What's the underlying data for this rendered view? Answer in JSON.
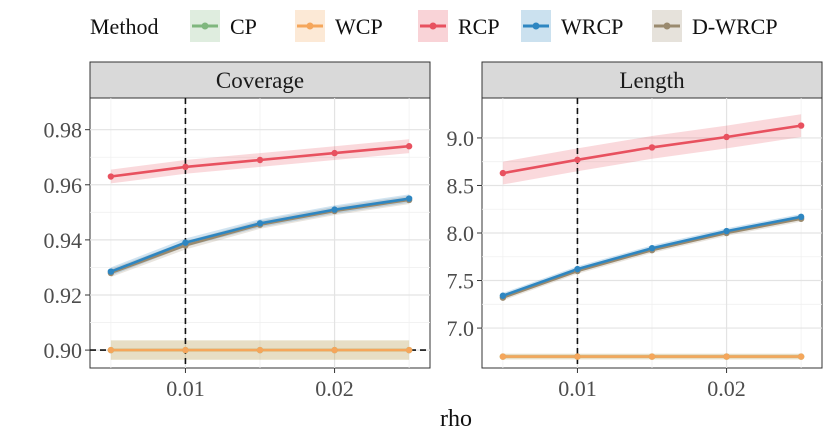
{
  "legend": {
    "title": "Method",
    "entries": [
      {
        "name": "CP",
        "color": "#7fb77e"
      },
      {
        "name": "WCP",
        "color": "#f5a65b"
      },
      {
        "name": "RCP",
        "color": "#e8515f"
      },
      {
        "name": "WRCP",
        "color": "#2e86c1"
      },
      {
        "name": "D-WRCP",
        "color": "#9a8a6e"
      }
    ]
  },
  "xlabel": "rho",
  "chart_data": [
    {
      "type": "line",
      "title": "Coverage",
      "xlabel": "rho",
      "ylabel": "",
      "x": [
        0.005,
        0.01,
        0.015,
        0.02,
        0.025
      ],
      "xlim": [
        0.0036,
        0.0264
      ],
      "ylim": [
        0.8935,
        0.9915
      ],
      "xticks": [
        0.01,
        0.02
      ],
      "xtick_labels": [
        "0.01",
        "0.02"
      ],
      "yticks": [
        0.9,
        0.92,
        0.94,
        0.96,
        0.98
      ],
      "ytick_labels": [
        "0.90",
        "0.92",
        "0.94",
        "0.96",
        "0.98"
      ],
      "vline": 0.01,
      "hline": 0.9,
      "series": [
        {
          "name": "CP",
          "values": [
            0.9,
            0.9,
            0.9,
            0.9,
            0.9
          ],
          "band": [
            0.0035,
            0.0035,
            0.0035,
            0.0035,
            0.0035
          ]
        },
        {
          "name": "WCP",
          "values": [
            0.9,
            0.9,
            0.9,
            0.9,
            0.9
          ],
          "band": [
            0.0035,
            0.0035,
            0.0035,
            0.0035,
            0.0035
          ]
        },
        {
          "name": "RCP",
          "values": [
            0.963,
            0.9665,
            0.969,
            0.9715,
            0.974
          ],
          "band": [
            0.0025,
            0.0025,
            0.0025,
            0.0025,
            0.0025
          ]
        },
        {
          "name": "WRCP",
          "values": [
            0.9285,
            0.939,
            0.946,
            0.951,
            0.955
          ],
          "band": [
            0.0015,
            0.0015,
            0.0015,
            0.0015,
            0.0015
          ]
        },
        {
          "name": "D-WRCP",
          "values": [
            0.928,
            0.938,
            0.9455,
            0.9505,
            0.9545
          ],
          "band": [
            0.0015,
            0.0015,
            0.0015,
            0.0015,
            0.0015
          ]
        }
      ]
    },
    {
      "type": "line",
      "title": "Length",
      "xlabel": "rho",
      "ylabel": "",
      "x": [
        0.005,
        0.01,
        0.015,
        0.02,
        0.025
      ],
      "xlim": [
        0.0036,
        0.0264
      ],
      "ylim": [
        6.58,
        9.42
      ],
      "xticks": [
        0.01,
        0.02
      ],
      "xtick_labels": [
        "0.01",
        "0.02"
      ],
      "yticks": [
        7.0,
        7.5,
        8.0,
        8.5,
        9.0
      ],
      "ytick_labels": [
        "7.0",
        "7.5",
        "8.0",
        "8.5",
        "9.0"
      ],
      "vline": 0.01,
      "hline": null,
      "series": [
        {
          "name": "CP",
          "values": [
            6.7,
            6.7,
            6.7,
            6.7,
            6.7
          ],
          "band": [
            0.03,
            0.03,
            0.03,
            0.03,
            0.03
          ]
        },
        {
          "name": "WCP",
          "values": [
            6.7,
            6.7,
            6.7,
            6.7,
            6.7
          ],
          "band": [
            0.03,
            0.03,
            0.03,
            0.03,
            0.03
          ]
        },
        {
          "name": "RCP",
          "values": [
            8.63,
            8.77,
            8.9,
            9.01,
            9.13
          ],
          "band": [
            0.12,
            0.12,
            0.12,
            0.12,
            0.12
          ]
        },
        {
          "name": "WRCP",
          "values": [
            7.34,
            7.62,
            7.84,
            8.02,
            8.17
          ],
          "band": [
            0.03,
            0.03,
            0.03,
            0.03,
            0.03
          ]
        },
        {
          "name": "D-WRCP",
          "values": [
            7.32,
            7.6,
            7.82,
            8.0,
            8.15
          ],
          "band": [
            0.03,
            0.03,
            0.03,
            0.03,
            0.03
          ]
        }
      ]
    }
  ]
}
